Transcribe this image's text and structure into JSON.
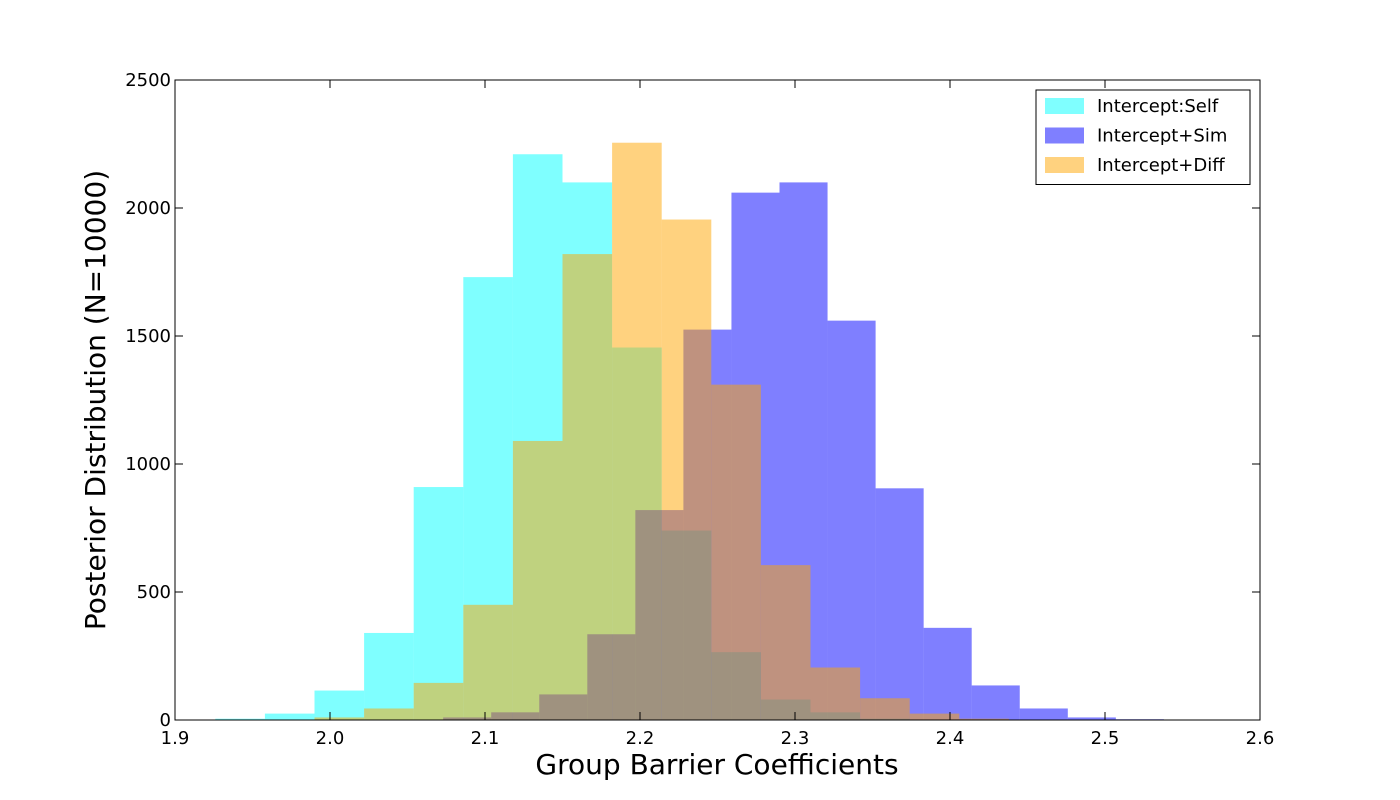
{
  "chart_data": {
    "type": "histogram",
    "title": "",
    "xlabel": "Group Barrier Coefficients",
    "ylabel": "Posterior Distribution (N=10000)",
    "xlim": [
      1.9,
      2.6
    ],
    "ylim": [
      0,
      2500
    ],
    "xticks": [
      "1.9",
      "2.0",
      "2.1",
      "2.2",
      "2.3",
      "2.4",
      "2.5",
      "2.6"
    ],
    "yticks": [
      "0",
      "500",
      "1000",
      "1500",
      "2000",
      "2500"
    ],
    "grid": false,
    "legend_position": "top-right",
    "series": [
      {
        "name": "Intercept:Self",
        "color": "#00ffff",
        "opacity": 0.5,
        "bin_edges": [
          1.926,
          1.958,
          1.99,
          2.022,
          2.054,
          2.086,
          2.118,
          2.15,
          2.182,
          2.214,
          2.246,
          2.278,
          2.31,
          2.342,
          2.374,
          2.406,
          2.438
        ],
        "counts": [
          5,
          25,
          115,
          340,
          910,
          1730,
          2210,
          2100,
          1455,
          740,
          265,
          80,
          30,
          5,
          2,
          1
        ]
      },
      {
        "name": "Intercept+Sim",
        "color": "#0000ff",
        "opacity": 0.5,
        "bin_edges": [
          2.073,
          2.104,
          2.135,
          2.166,
          2.197,
          2.228,
          2.259,
          2.29,
          2.321,
          2.352,
          2.383,
          2.414,
          2.445,
          2.476,
          2.507,
          2.538
        ],
        "counts": [
          10,
          30,
          100,
          335,
          820,
          1525,
          2060,
          2100,
          1560,
          905,
          360,
          135,
          45,
          10,
          3
        ]
      },
      {
        "name": "Intercept+Diff",
        "color": "#ffa500",
        "opacity": 0.5,
        "bin_edges": [
          1.99,
          2.022,
          2.054,
          2.086,
          2.118,
          2.15,
          2.182,
          2.214,
          2.246,
          2.278,
          2.31,
          2.342,
          2.374,
          2.406,
          2.438,
          2.47
        ],
        "counts": [
          10,
          45,
          145,
          450,
          1090,
          1820,
          2255,
          1955,
          1310,
          605,
          205,
          85,
          25,
          5,
          2
        ]
      }
    ]
  }
}
